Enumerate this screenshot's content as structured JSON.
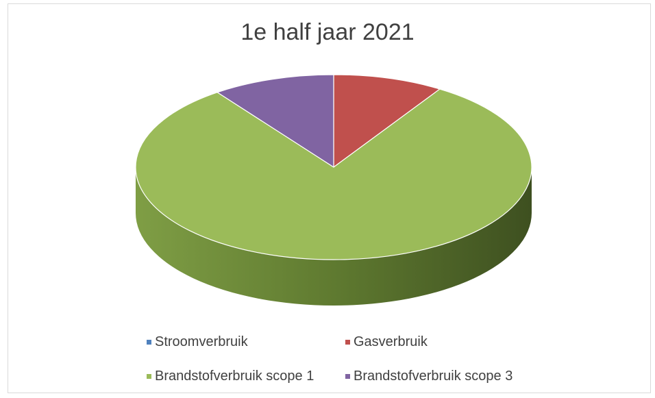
{
  "chart_data": {
    "type": "pie",
    "style": "3d",
    "title": "1e half jaar 2021",
    "categories": [
      "Stroomverbruik",
      "Gasverbruik",
      "Brandstofverbruik scope 1",
      "Brandstofverbruik scope 3"
    ],
    "values": [
      0.0,
      9.0,
      81.0,
      10.0
    ],
    "value_unit": "percent (estimated share)",
    "colors": [
      "#4f81bd",
      "#c0504d",
      "#9bbb59",
      "#8064a2"
    ],
    "legend_position": "bottom"
  }
}
